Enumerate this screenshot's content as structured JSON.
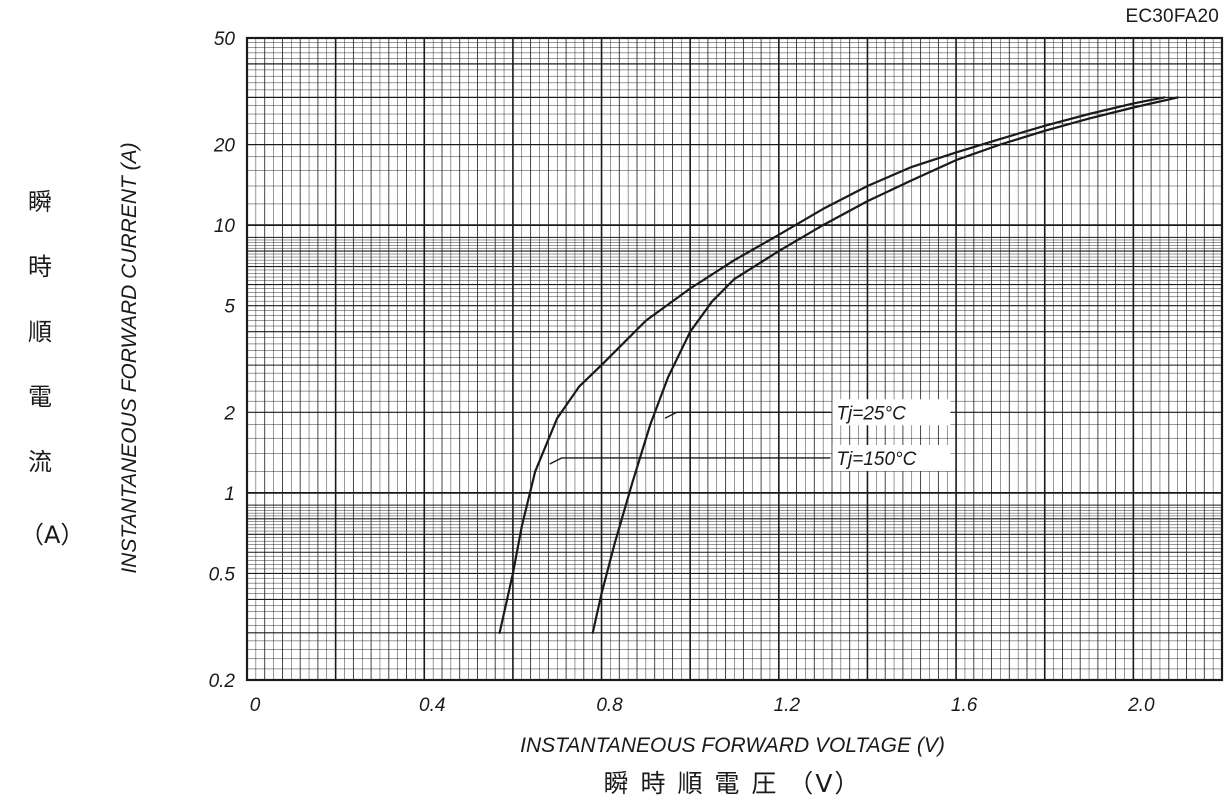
{
  "chart_data": {
    "type": "line",
    "part_number": "EC30FA20",
    "xlabel": "INSTANTANEOUS FORWARD VOLTAGE (V)",
    "xlabel_jp": "瞬 時 順 電 圧 （V）",
    "ylabel": "INSTANTANEOUS FORWARD CURRENT (A)",
    "ylabel_jp": [
      "瞬",
      "時",
      "順",
      "電",
      "流"
    ],
    "ylabel_jp_unit": "（A）",
    "xlim": [
      0,
      2.2
    ],
    "ylim": [
      0.2,
      50
    ],
    "yscale": "log",
    "grid": true,
    "x_ticks": [
      "0",
      "0.4",
      "0.8",
      "1.2",
      "1.6",
      "2.0"
    ],
    "y_ticks": [
      "0.2",
      "0.5",
      "1",
      "2",
      "5",
      "10",
      "20",
      "50"
    ],
    "series": [
      {
        "name": "Tj=25°C",
        "points": [
          [
            0.78,
            0.3
          ],
          [
            0.8,
            0.42
          ],
          [
            0.83,
            0.65
          ],
          [
            0.87,
            1.1
          ],
          [
            0.91,
            1.8
          ],
          [
            0.95,
            2.7
          ],
          [
            1.0,
            4.0
          ],
          [
            1.05,
            5.2
          ],
          [
            1.1,
            6.3
          ],
          [
            1.2,
            8.0
          ],
          [
            1.3,
            10.0
          ],
          [
            1.4,
            12.3
          ],
          [
            1.5,
            14.7
          ],
          [
            1.6,
            17.5
          ],
          [
            1.7,
            20.0
          ],
          [
            1.8,
            22.5
          ],
          [
            1.9,
            25.0
          ],
          [
            2.0,
            27.5
          ],
          [
            2.1,
            30.0
          ]
        ]
      },
      {
        "name": "Tj=150°C",
        "points": [
          [
            0.57,
            0.3
          ],
          [
            0.6,
            0.5
          ],
          [
            0.62,
            0.75
          ],
          [
            0.65,
            1.2
          ],
          [
            0.7,
            1.9
          ],
          [
            0.75,
            2.5
          ],
          [
            0.8,
            3.0
          ],
          [
            0.9,
            4.4
          ],
          [
            1.0,
            5.8
          ],
          [
            1.1,
            7.4
          ],
          [
            1.2,
            9.2
          ],
          [
            1.3,
            11.5
          ],
          [
            1.4,
            14.0
          ],
          [
            1.5,
            16.5
          ],
          [
            1.6,
            18.7
          ],
          [
            1.7,
            21.0
          ],
          [
            1.8,
            23.5
          ],
          [
            1.9,
            26.0
          ],
          [
            2.0,
            28.5
          ],
          [
            2.07,
            30.0
          ]
        ]
      }
    ]
  }
}
